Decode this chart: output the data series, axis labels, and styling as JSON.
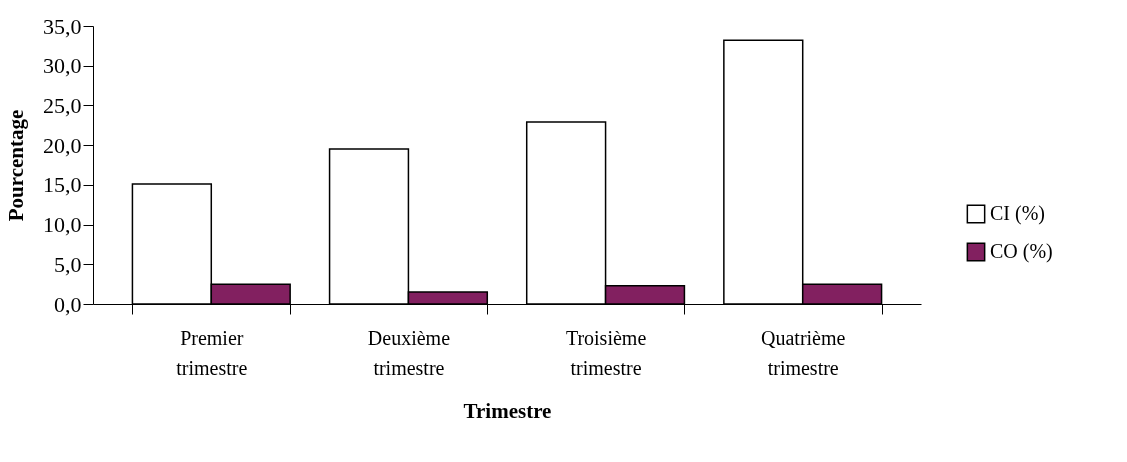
{
  "chart_data": {
    "type": "bar",
    "xlabel": "Trimestre",
    "ylabel": "Pourcentage",
    "categories": [
      "Premier trimestre",
      "Deuxième trimestre",
      "Troisième trimestre",
      "Quatrième trimestre"
    ],
    "series": [
      {
        "name": "CI (%)",
        "color": "#ffffff",
        "values": [
          15.1,
          19.5,
          22.9,
          33.2
        ]
      },
      {
        "name": "CO (%)",
        "color": "#822060",
        "values": [
          2.5,
          1.5,
          2.3,
          2.5
        ]
      }
    ],
    "ylim": [
      0,
      35
    ],
    "yticks": [
      {
        "value": 0,
        "label": "0,0"
      },
      {
        "value": 5,
        "label": "5,0"
      },
      {
        "value": 10,
        "label": "10,0"
      },
      {
        "value": 15,
        "label": "15,0"
      },
      {
        "value": 20,
        "label": "20,0"
      },
      {
        "value": 25,
        "label": "25,0"
      },
      {
        "value": 30,
        "label": "30,0"
      },
      {
        "value": 35,
        "label": "35,0"
      }
    ],
    "grid": false,
    "legend": "right"
  }
}
